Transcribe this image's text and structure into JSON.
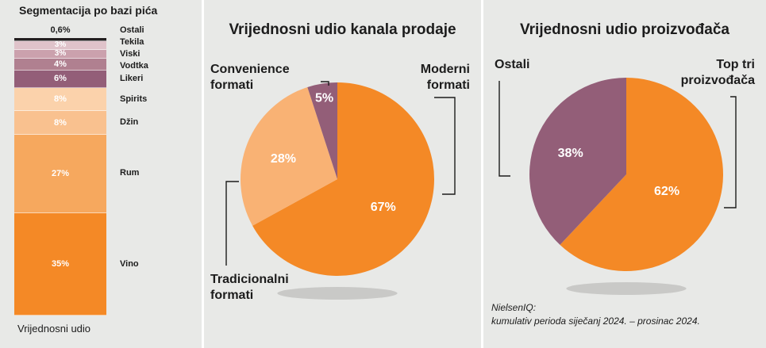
{
  "segmentation": {
    "title": "Segmentacija po bazi pića",
    "footer": "Vrijednosni udio",
    "segments": [
      {
        "label": "Ostali",
        "value_text": "0,6%",
        "value": 0.6,
        "color": "#231f20"
      },
      {
        "label": "Tekila",
        "value_text": "3%",
        "value": 3,
        "color": "#dfc3ca"
      },
      {
        "label": "Viski",
        "value_text": "3%",
        "value": 3,
        "color": "#cba1ad"
      },
      {
        "label": "Vodtka",
        "value_text": "4%",
        "value": 4,
        "color": "#b08090"
      },
      {
        "label": "Likeri",
        "value_text": "6%",
        "value": 6,
        "color": "#935e78"
      },
      {
        "label": "Spirits",
        "value_text": "8%",
        "value": 8,
        "color": "#fbd2ab"
      },
      {
        "label": "Džin",
        "value_text": "8%",
        "value": 8,
        "color": "#f9c18f"
      },
      {
        "label": "Rum",
        "value_text": "27%",
        "value": 27,
        "color": "#f6a85e"
      },
      {
        "label": "Vino",
        "value_text": "35%",
        "value": 35,
        "color": "#f48926"
      }
    ]
  },
  "channel": {
    "title": "Vrijednosni udio kanala prodaje",
    "callouts": {
      "modern": [
        "Moderni",
        "formati"
      ],
      "convenience": [
        "Convenience",
        "formati"
      ],
      "traditional": [
        "Tradicionalni",
        "formati"
      ]
    }
  },
  "producer": {
    "title": "Vrijednosni udio proizvođača",
    "callouts": {
      "others": [
        "Ostali"
      ],
      "top3": [
        "Top tri",
        "proizvođača"
      ]
    },
    "source": [
      "NielsenIQ:",
      "kumulativ perioda siječanj 2024. – prosinac 2024."
    ]
  },
  "chart_data": [
    {
      "type": "bar",
      "title": "Segmentacija po bazi pića",
      "xlabel": "Vrijednosni udio",
      "categories": [
        "Ostali",
        "Tekila",
        "Viski",
        "Vodtka",
        "Likeri",
        "Spirits",
        "Džin",
        "Rum",
        "Vino"
      ],
      "values": [
        0.6,
        3,
        3,
        4,
        6,
        8,
        8,
        27,
        35
      ],
      "stacked": true
    },
    {
      "type": "pie",
      "title": "Vrijednosni udio kanala prodaje",
      "slices": [
        {
          "name": "Moderni formati",
          "value": 67,
          "label": "67%",
          "color": "#f48926"
        },
        {
          "name": "Tradicionalni formati",
          "value": 28,
          "label": "28%",
          "color": "#f9b274"
        },
        {
          "name": "Convenience formati",
          "value": 5,
          "label": "5%",
          "color": "#935e78"
        }
      ]
    },
    {
      "type": "pie",
      "title": "Vrijednosni udio proizvođača",
      "slices": [
        {
          "name": "Top tri proizvođača",
          "value": 62,
          "label": "62%",
          "color": "#f48926"
        },
        {
          "name": "Ostali",
          "value": 38,
          "label": "38%",
          "color": "#935e78"
        }
      ]
    }
  ]
}
